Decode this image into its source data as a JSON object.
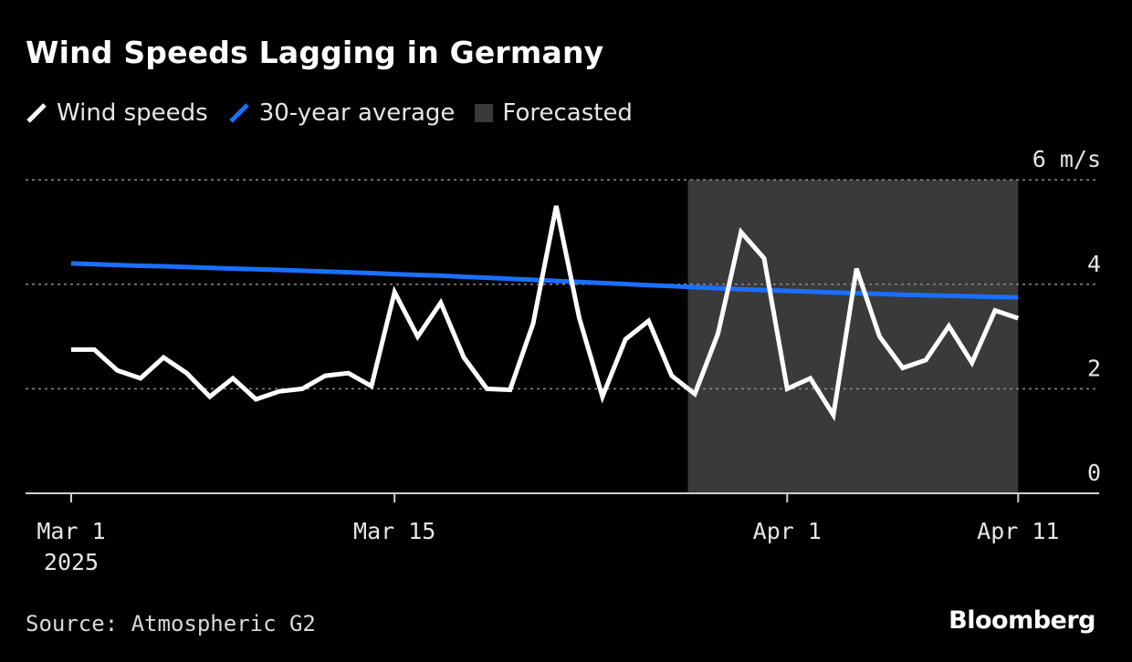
{
  "colors": {
    "background": "#000000",
    "wind": "#ffffff",
    "average": "#1a6fff",
    "forecast": "#3a3a3a",
    "grid": "#8a8a8a"
  },
  "source": "Source: Atmospheric G2",
  "brand": "Bloomberg",
  "chart_data": {
    "type": "line",
    "title": "Wind Speeds Lagging in Germany",
    "unit_label": "6 m/s",
    "legend": [
      {
        "name": "Wind speeds",
        "icon": "white-slash-icon"
      },
      {
        "name": "30-year average",
        "icon": "blue-slash-icon"
      },
      {
        "name": "Forecasted",
        "icon": "gray-box-icon"
      }
    ],
    "ylim": [
      0,
      6
    ],
    "yticks": [
      0,
      2,
      4,
      6
    ],
    "ytick_labels": [
      "0",
      "2",
      "4",
      "6 m/s"
    ],
    "x_range": [
      "2025-03-01",
      "2025-04-12"
    ],
    "xticks": [
      {
        "label": "Mar 1",
        "sublabel": "2025",
        "day": 0
      },
      {
        "label": "Mar 15",
        "sublabel": "",
        "day": 14
      },
      {
        "label": "Apr 1",
        "sublabel": "",
        "day": 31
      },
      {
        "label": "Apr 11",
        "sublabel": "",
        "day": 41
      }
    ],
    "forecast_range_days": [
      27,
      41
    ],
    "series": [
      {
        "name": "Wind speeds",
        "start_date": "2025-03-01",
        "values": [
          2.75,
          2.75,
          2.35,
          2.2,
          2.6,
          2.3,
          1.85,
          2.2,
          1.8,
          1.95,
          2.0,
          2.25,
          2.3,
          2.05,
          3.85,
          3.0,
          3.65,
          2.6,
          2.0,
          1.98,
          3.25,
          5.5,
          3.35,
          1.85,
          2.95,
          3.3,
          2.25,
          1.9,
          3.05,
          5.0,
          4.5,
          2.0,
          2.2,
          1.5,
          4.3,
          3.0,
          2.4,
          2.55,
          3.2,
          2.5,
          3.5,
          3.35
        ]
      },
      {
        "name": "30-year average",
        "start_date": "2025-03-01",
        "values": [
          4.4,
          4.385,
          4.37,
          4.355,
          4.345,
          4.33,
          4.315,
          4.3,
          4.29,
          4.275,
          4.26,
          4.245,
          4.23,
          4.215,
          4.195,
          4.18,
          4.165,
          4.145,
          4.125,
          4.105,
          4.085,
          4.065,
          4.045,
          4.025,
          4.005,
          3.985,
          3.965,
          3.945,
          3.925,
          3.905,
          3.89,
          3.875,
          3.86,
          3.845,
          3.83,
          3.815,
          3.8,
          3.79,
          3.78,
          3.77,
          3.76,
          3.75
        ]
      }
    ]
  }
}
